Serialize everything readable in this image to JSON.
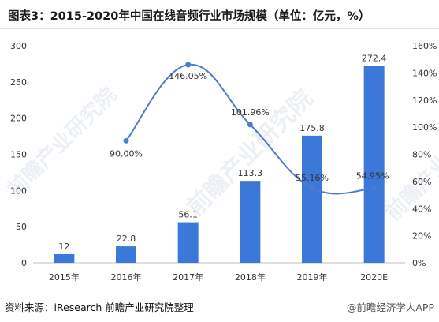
{
  "title": "图表3：2015-2020年中国在线音频行业市场规模（单位：亿元，%）",
  "source": "资料来源：iResearch 前瞻产业研究院整理",
  "credit": "@前瞻经济学人APP",
  "watermark": "前瞻产业研究院",
  "colors": {
    "bar": "#3b78d8",
    "line": "#4a7ccf",
    "axis": "#bfbfbf",
    "text": "#333333"
  },
  "chart_data": {
    "type": "bar",
    "categories": [
      "2015年",
      "2016年",
      "2017年",
      "2018年",
      "2019年",
      "2020E"
    ],
    "series": [
      {
        "type": "bar",
        "axis": "left",
        "values": [
          12,
          22.8,
          56.1,
          113.3,
          175.8,
          272.4
        ],
        "labels": [
          "12",
          "22.8",
          "56.1",
          "113.3",
          "175.8",
          "272.4"
        ]
      },
      {
        "type": "line",
        "axis": "right",
        "values": [
          null,
          90.0,
          146.05,
          101.96,
          55.16,
          54.95
        ],
        "labels": [
          "",
          "90.00%",
          "146.05%",
          "101.96%",
          "55.16%",
          "54.95%"
        ]
      }
    ],
    "y_left": {
      "min": 0,
      "max": 300,
      "ticks": [
        0,
        50,
        100,
        150,
        200,
        250,
        300
      ]
    },
    "y_right": {
      "min": 0,
      "max": 160,
      "ticks": [
        "0%",
        "20%",
        "40%",
        "60%",
        "80%",
        "100%",
        "120%",
        "140%",
        "160%"
      ]
    },
    "grid": false
  }
}
